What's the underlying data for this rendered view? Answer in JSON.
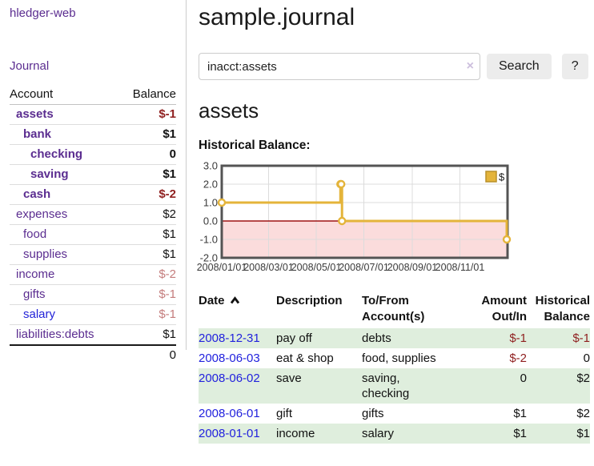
{
  "brand": "hledger-web",
  "nav": {
    "journal": "Journal"
  },
  "colors": {
    "link_purple": "#5b2d90",
    "link_blue": "#2323d8",
    "negative_strong": "#8f1f1f",
    "negative_soft": "#c47c7c",
    "date_link": "#2222dd",
    "row_stripe_green": "#dfeedd",
    "chart_line_gold": "#e4b43a",
    "chart_negative_pink": "#fbdcdc",
    "chart_zero_line": "#9e1414"
  },
  "sidebar": {
    "headers": {
      "account": "Account",
      "balance": "Balance"
    },
    "rows": [
      {
        "name": "assets",
        "balance": "$-1",
        "level": 1,
        "bold": true,
        "balance_tone": "neg-strong",
        "link_tone": "visited"
      },
      {
        "name": "bank",
        "balance": "$1",
        "level": 2,
        "bold": true,
        "balance_tone": "normal",
        "link_tone": "visited"
      },
      {
        "name": "checking",
        "balance": "0",
        "level": 3,
        "bold": true,
        "balance_tone": "normal",
        "link_tone": "visited"
      },
      {
        "name": "saving",
        "balance": "$1",
        "level": 3,
        "bold": true,
        "balance_tone": "normal",
        "link_tone": "visited"
      },
      {
        "name": "cash",
        "balance": "$-2",
        "level": 2,
        "bold": true,
        "balance_tone": "neg-strong",
        "link_tone": "visited"
      },
      {
        "name": "expenses",
        "balance": "$2",
        "level": 1,
        "bold": false,
        "balance_tone": "normal",
        "link_tone": "visited"
      },
      {
        "name": "food",
        "balance": "$1",
        "level": 2,
        "bold": false,
        "balance_tone": "normal",
        "link_tone": "visited"
      },
      {
        "name": "supplies",
        "balance": "$1",
        "level": 2,
        "bold": false,
        "balance_tone": "normal",
        "link_tone": "visited"
      },
      {
        "name": "income",
        "balance": "$-2",
        "level": 1,
        "bold": false,
        "balance_tone": "neg-soft",
        "link_tone": "visited"
      },
      {
        "name": "gifts",
        "balance": "$-1",
        "level": 2,
        "bold": false,
        "balance_tone": "neg-soft",
        "link_tone": "visited"
      },
      {
        "name": "salary",
        "balance": "$-1",
        "level": 2,
        "bold": false,
        "balance_tone": "neg-soft",
        "link_tone": "new"
      },
      {
        "name": "liabilities:debts",
        "balance": "$1",
        "level": 1,
        "bold": false,
        "balance_tone": "normal",
        "link_tone": "visited"
      }
    ],
    "total": "0"
  },
  "header": {
    "title": "sample.journal"
  },
  "search": {
    "value": "inacct:assets",
    "clear": "×",
    "button_label": "Search",
    "help_label": "?"
  },
  "account_view": {
    "title": "assets",
    "section_label": "Historical Balance:"
  },
  "chart_data": {
    "type": "line",
    "title": "Historical Balance",
    "step": true,
    "series": [
      {
        "name": "$",
        "color": "#e4b43a",
        "points": [
          [
            "2008-01-01",
            1
          ],
          [
            "2008-06-01",
            2
          ],
          [
            "2008-06-02",
            2
          ],
          [
            "2008-06-03",
            0
          ],
          [
            "2008-12-31",
            -1
          ]
        ]
      }
    ],
    "x_range": [
      "2008-01-01",
      "2009-01-01"
    ],
    "ylim": [
      -2,
      3
    ],
    "ytick_labels": [
      "3.0",
      "2.0",
      "1.0",
      "0.0",
      "-1.0",
      "-2.0"
    ],
    "xtick_labels": [
      "2008/01/01",
      "2008/03/01",
      "2008/05/01",
      "2008/07/01",
      "2008/09/01",
      "2008/11/01"
    ],
    "grid": true,
    "legend": {
      "label": "$",
      "position": "top-right"
    },
    "negative_region_fill": "#fbdcdc",
    "zero_line_color": "#9e1414"
  },
  "register": {
    "headers": {
      "date": "Date",
      "description": "Description",
      "accounts": "To/From Account(s)",
      "amount": "Amount Out/In",
      "balance": "Historical Balance"
    },
    "sort": "ascending",
    "rows": [
      {
        "date": "2008-12-31",
        "description": "pay off",
        "accounts": [
          "debts"
        ],
        "amount": "$-1",
        "amount_tone": "neg-strong",
        "balance": "$-1",
        "balance_tone": "neg-strong"
      },
      {
        "date": "2008-06-03",
        "description": "eat & shop",
        "accounts": [
          "food, supplies"
        ],
        "amount": "$-2",
        "amount_tone": "neg-strong",
        "balance": "0",
        "balance_tone": "normal"
      },
      {
        "date": "2008-06-02",
        "description": "save",
        "accounts": [
          "saving,",
          "checking"
        ],
        "amount": "0",
        "amount_tone": "normal",
        "balance": "$2",
        "balance_tone": "normal"
      },
      {
        "date": "2008-06-01",
        "description": "gift",
        "accounts": [
          "gifts"
        ],
        "amount": "$1",
        "amount_tone": "normal",
        "balance": "$2",
        "balance_tone": "normal"
      },
      {
        "date": "2008-01-01",
        "description": "income",
        "accounts": [
          "salary"
        ],
        "amount": "$1",
        "amount_tone": "normal",
        "balance": "$1",
        "balance_tone": "normal"
      }
    ]
  }
}
